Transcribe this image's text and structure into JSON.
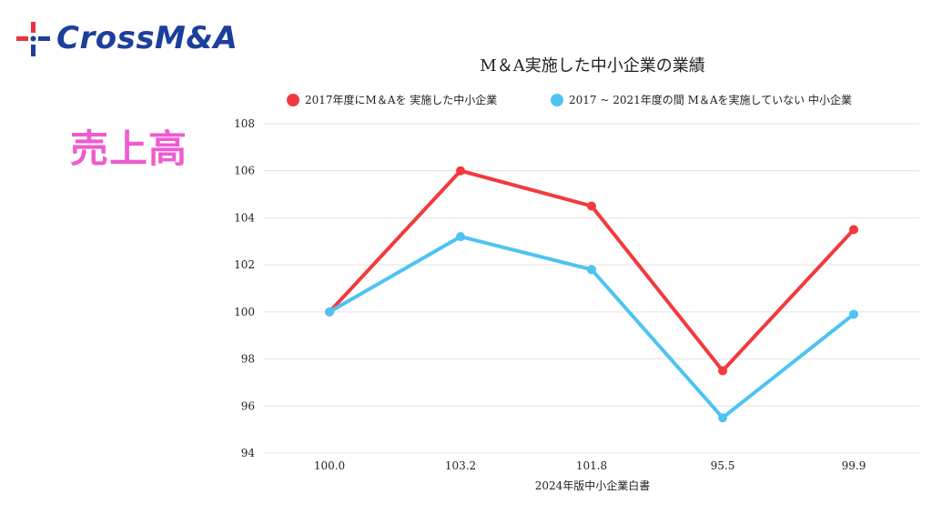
{
  "brand": {
    "name": "CrossM&A",
    "colors": {
      "text": "#1d3f9c",
      "red": "#e8343b",
      "blue": "#1d3f9c"
    },
    "icon": "cross-logo-icon"
  },
  "section_label": "売上高",
  "chart_data": {
    "type": "line",
    "title": "M＆A実施した中小企業の業績",
    "xlabel": "2024年版中小企業白書",
    "ylabel": "",
    "categories": [
      "100.0",
      "103.2",
      "101.8",
      "95.5",
      "99.9"
    ],
    "ylim": [
      94,
      108
    ],
    "yticks": [
      94,
      96,
      98,
      100,
      102,
      104,
      106,
      108
    ],
    "grid": true,
    "legend_position": "top",
    "series": [
      {
        "name": "2017年度にM＆Aを 実施した中小企業",
        "color": "#f23a3e",
        "values": [
          100.0,
          106.0,
          104.5,
          97.5,
          103.5
        ]
      },
      {
        "name": "2017 ~ 2021年度の間 M＆Aを実施していない 中小企業",
        "color": "#4dc3f2",
        "values": [
          100.0,
          103.2,
          101.8,
          95.5,
          99.9
        ]
      }
    ]
  }
}
